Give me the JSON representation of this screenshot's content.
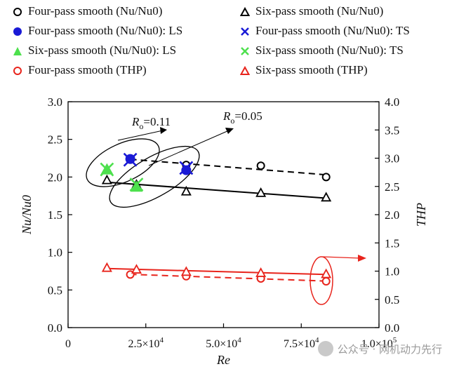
{
  "legend": [
    {
      "label": "Four-pass smooth (Nu/Nu0)",
      "marker": "circle-open",
      "color": "#000000"
    },
    {
      "label": "Six-pass smooth (Nu/Nu0)",
      "marker": "triangle-open",
      "color": "#000000"
    },
    {
      "label": "Four-pass smooth (Nu/Nu0): LS",
      "marker": "circle-filled",
      "color": "#1a1ad6"
    },
    {
      "label": "Four-pass smooth (Nu/Nu0): TS",
      "marker": "x",
      "color": "#1a1ad6"
    },
    {
      "label": "Six-pass smooth (Nu/Nu0): LS",
      "marker": "triangle-filled",
      "color": "#4de04d"
    },
    {
      "label": "Six-pass smooth (Nu/Nu0): TS",
      "marker": "x",
      "color": "#4de04d"
    },
    {
      "label": "Four-pass smooth (THP)",
      "marker": "circle-open",
      "color": "#e8241c"
    },
    {
      "label": "Six-pass smooth (THP)",
      "marker": "triangle-open",
      "color": "#e8241c"
    }
  ],
  "chart_data": {
    "type": "scatter",
    "xlabel": "Re",
    "ylabel": "Nu/Nu0",
    "y2label": "THP",
    "xlim": [
      0,
      100000
    ],
    "ylim": [
      0,
      3.0
    ],
    "y2lim": [
      0,
      4.0
    ],
    "x_ticks": [
      "0",
      "2.5×10^4",
      "5.0×10^4",
      "7.5×10^4",
      "1.0×10^5"
    ],
    "y_ticks": [
      "0.0",
      "0.5",
      "1.0",
      "1.5",
      "2.0",
      "2.5",
      "3.0"
    ],
    "y2_ticks": [
      "0.0",
      "0.5",
      "1.0",
      "1.5",
      "2.0",
      "2.5",
      "3.0",
      "3.5",
      "4.0"
    ],
    "annotations": [
      "Ro=0.11",
      "Ro=0.05"
    ],
    "series": [
      {
        "name": "Four-pass smooth (Nu/Nu0)",
        "axis": "left",
        "color": "#000000",
        "marker": "circle-open",
        "x": [
          20000,
          38000,
          62000,
          83000
        ],
        "y": [
          2.23,
          2.16,
          2.15,
          2.0
        ]
      },
      {
        "name": "Six-pass smooth (Nu/Nu0)",
        "axis": "left",
        "color": "#000000",
        "marker": "triangle-open",
        "x": [
          12500,
          22000,
          38000,
          62000,
          83000
        ],
        "y": [
          1.96,
          1.9,
          1.81,
          1.79,
          1.73
        ]
      },
      {
        "name": "Four-pass smooth (Nu/Nu0): LS",
        "axis": "left",
        "color": "#1a1ad6",
        "marker": "circle-filled",
        "x": [
          20000,
          38000
        ],
        "y": [
          2.24,
          2.09
        ]
      },
      {
        "name": "Four-pass smooth (Nu/Nu0): TS",
        "axis": "left",
        "color": "#1a1ad6",
        "marker": "x",
        "x": [
          20000,
          38000
        ],
        "y": [
          2.23,
          2.12
        ]
      },
      {
        "name": "Six-pass smooth (Nu/Nu0): LS",
        "axis": "left",
        "color": "#4de04d",
        "marker": "triangle-filled",
        "x": [
          12500,
          22000
        ],
        "y": [
          2.1,
          1.87
        ]
      },
      {
        "name": "Six-pass smooth (Nu/Nu0): TS",
        "axis": "left",
        "color": "#4de04d",
        "marker": "x",
        "x": [
          12500,
          22000
        ],
        "y": [
          2.1,
          1.9
        ]
      },
      {
        "name": "Four-pass smooth (THP)",
        "axis": "right",
        "color": "#e8241c",
        "marker": "circle-open",
        "x": [
          20000,
          38000,
          62000,
          83000
        ],
        "y": [
          0.94,
          0.91,
          0.87,
          0.82
        ]
      },
      {
        "name": "Six-pass smooth (THP)",
        "axis": "right",
        "color": "#e8241c",
        "marker": "triangle-open",
        "x": [
          12500,
          22000,
          38000,
          62000,
          83000
        ],
        "y": [
          1.06,
          1.03,
          0.99,
          0.97,
          0.95
        ]
      }
    ]
  },
  "watermark": "公众号 · 网机动力先行"
}
